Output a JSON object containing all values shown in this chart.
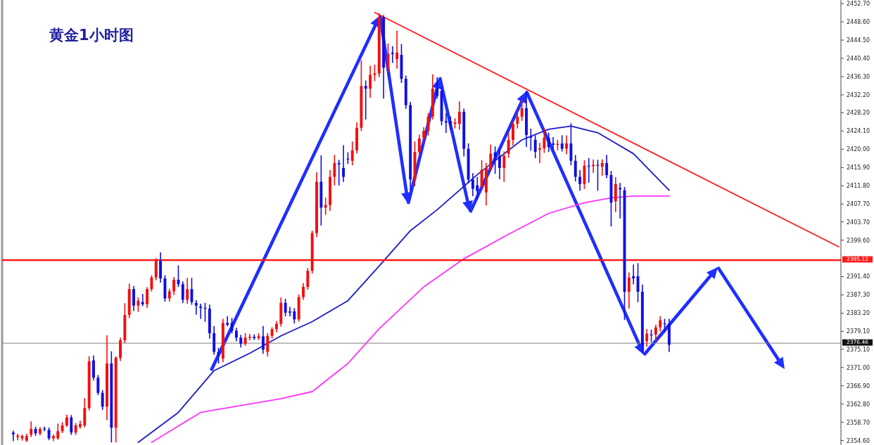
{
  "chart_data": {
    "type": "candlestick",
    "title": "黄金1小时图",
    "categories": [
      null,
      null,
      null,
      null,
      null,
      null,
      null,
      null,
      null,
      null,
      null,
      null,
      null,
      null,
      null,
      null,
      null,
      null,
      null,
      null,
      null,
      null,
      null,
      null,
      null,
      null,
      null,
      null,
      null,
      null,
      null,
      null,
      null,
      null,
      null,
      null,
      null,
      null,
      null,
      null,
      null,
      null,
      null,
      null,
      null,
      null,
      null,
      null,
      null,
      null,
      null,
      null,
      null,
      null,
      null,
      null,
      null,
      null,
      null,
      null,
      null,
      null,
      null,
      null,
      null,
      null,
      null,
      null,
      null,
      null,
      null,
      null,
      null,
      null,
      null,
      null,
      null,
      null,
      null,
      null,
      null,
      null,
      null,
      null,
      null,
      null,
      null,
      null,
      null,
      null,
      null,
      null,
      null,
      null,
      null,
      null,
      null,
      null,
      null,
      null,
      null,
      null,
      null,
      null,
      null,
      null,
      null,
      null,
      null,
      null,
      null,
      null,
      null,
      null,
      null,
      null,
      null,
      null,
      null,
      null,
      null,
      null,
      null,
      null,
      null,
      null,
      null,
      null,
      null,
      null,
      null,
      null,
      null,
      null,
      null,
      null,
      null,
      null,
      null,
      null,
      null,
      null,
      null,
      null,
      null,
      null,
      null,
      null,
      null,
      null,
      null,
      null,
      null,
      null,
      null,
      null,
      null,
      null,
      null,
      null,
      null,
      null,
      null,
      null,
      null,
      null,
      null,
      null,
      null,
      null,
      null,
      null,
      null,
      null,
      null,
      null,
      null,
      null,
      null,
      null,
      null,
      null,
      null,
      null,
      null,
      null,
      null,
      null
    ],
    "ohlc": [
      null,
      null,
      [
        2356.4,
        2356.7,
        2354.6,
        2356.0
      ],
      [
        2355.4,
        2356.0,
        2354.8,
        2355.7
      ],
      [
        2355.1,
        2355.8,
        2354.7,
        2355.6
      ],
      [
        2354.6,
        2356.0,
        2354.4,
        2355.6
      ],
      [
        2355.9,
        2358.8,
        2355.5,
        2357.2
      ],
      [
        2357.2,
        2357.6,
        2355.8,
        2356.2
      ],
      [
        2356.2,
        2357.5,
        2355.9,
        2357.2
      ],
      [
        2357.3,
        2357.6,
        2356.8,
        2357.1
      ],
      [
        2357.0,
        2357.4,
        2354.8,
        2355.1
      ],
      [
        2355.1,
        2355.8,
        2354.6,
        2355.6
      ],
      [
        2355.1,
        2358.3,
        2354.9,
        2356.7
      ],
      [
        2356.7,
        2358.6,
        2356.4,
        2358.0
      ],
      [
        2358.0,
        2360.3,
        2357.8,
        2359.8
      ],
      [
        2359.8,
        2360.2,
        2356.0,
        2356.4
      ],
      [
        2356.4,
        2358.4,
        2356.0,
        2358.0
      ],
      [
        2357.7,
        2358.9,
        2357.4,
        2358.3
      ],
      [
        2358.0,
        2364.0,
        2357.7,
        2361.9
      ],
      [
        2361.9,
        2373.4,
        2361.5,
        2372.4
      ],
      [
        2372.6,
        2373.6,
        2368.2,
        2368.7
      ],
      [
        2368.7,
        2369.2,
        2364.9,
        2365.3
      ],
      [
        2365.3,
        2365.8,
        2361.6,
        2362.2
      ],
      [
        2362.2,
        2378.1,
        2359.3,
        2371.9
      ],
      [
        2371.9,
        2374.5,
        2354.3,
        2357.5
      ],
      [
        2357.5,
        2373.4,
        2354.3,
        2373.2
      ],
      [
        2373.2,
        2377.6,
        2372.6,
        2377.1
      ],
      [
        2377.1,
        2385.3,
        2376.6,
        2382.8
      ],
      [
        2382.8,
        2389.7,
        2382.2,
        2388.6
      ],
      [
        2388.6,
        2389.2,
        2383.8,
        2384.9
      ],
      [
        2384.9,
        2386.6,
        2383.6,
        2386.0
      ],
      [
        2385.7,
        2387.4,
        2384.9,
        2385.2
      ],
      [
        2385.2,
        2388.9,
        2384.5,
        2388.6
      ],
      [
        2388.6,
        2391.6,
        2388.2,
        2391.2
      ],
      [
        2391.2,
        2395.4,
        2390.7,
        2394.9
      ],
      [
        2394.9,
        2396.7,
        2390.2,
        2391.0
      ],
      [
        2391.0,
        2391.6,
        2385.9,
        2386.5
      ],
      [
        2386.5,
        2388.6,
        2385.9,
        2388.1
      ],
      [
        2388.1,
        2391.2,
        2387.4,
        2390.7
      ],
      [
        2390.7,
        2393.8,
        2389.2,
        2389.7
      ],
      [
        2389.7,
        2390.2,
        2385.6,
        2386.2
      ],
      [
        2386.2,
        2391.0,
        2385.4,
        2388.6
      ],
      [
        2388.6,
        2391.0,
        2385.2,
        2385.7
      ],
      [
        2385.5,
        2386.0,
        2383.0,
        2384.9
      ],
      [
        2384.7,
        2385.2,
        2382.0,
        2384.4
      ],
      [
        2384.4,
        2385.4,
        2381.4,
        2384.2
      ],
      [
        2384.2,
        2385.0,
        2377.6,
        2378.7
      ],
      [
        2378.7,
        2380.2,
        2374.0,
        2374.5
      ],
      [
        2374.5,
        2375.3,
        2372.0,
        2374.0
      ],
      [
        2373.0,
        2381.8,
        2372.3,
        2381.0
      ],
      [
        2381.0,
        2382.4,
        2380.4,
        2380.6
      ],
      [
        2381.0,
        2382.0,
        2378.8,
        2379.25
      ],
      [
        2379.25,
        2379.8,
        2377.0,
        2377.7
      ],
      [
        2377.7,
        2378.2,
        2375.6,
        2376.3
      ],
      [
        2376.3,
        2378.6,
        2376.0,
        2377.7
      ],
      [
        2377.7,
        2378.4,
        2377.2,
        2377.9
      ],
      [
        2377.9,
        2378.3,
        2377.3,
        2377.6
      ],
      [
        2377.6,
        2378.6,
        2377.3,
        2378.0
      ],
      [
        2378.0,
        2380.2,
        2374.2,
        2375.0
      ],
      [
        2374.5,
        2378.6,
        2373.6,
        2378.1
      ],
      [
        2378.1,
        2379.9,
        2377.6,
        2379.6
      ],
      [
        2379.6,
        2381.3,
        2379.0,
        2380.8
      ],
      [
        2380.8,
        2386.6,
        2380.3,
        2385.5
      ],
      [
        2385.5,
        2386.3,
        2382.6,
        2383.3
      ],
      [
        2383.6,
        2384.5,
        2382.6,
        2383.3
      ],
      [
        2383.6,
        2384.2,
        2381.0,
        2381.8
      ],
      [
        2381.8,
        2387.3,
        2381.4,
        2386.8
      ],
      [
        2386.8,
        2389.8,
        2386.3,
        2389.1
      ],
      [
        2389.1,
        2393.2,
        2388.6,
        2392.7
      ],
      [
        2392.7,
        2401.6,
        2392.2,
        2401.2
      ],
      [
        2401.2,
        2414.7,
        2400.4,
        2412.7
      ],
      [
        2412.7,
        2418.5,
        2403.0,
        2406.9
      ],
      [
        2406.9,
        2409.0,
        2405.4,
        2407.5
      ],
      [
        2407.5,
        2415.2,
        2406.3,
        2413.8
      ],
      [
        2413.8,
        2418.6,
        2412.0,
        2416.9
      ],
      [
        2416.9,
        2417.5,
        2412.0,
        2416.6
      ],
      [
        2415.8,
        2420.8,
        2412.8,
        2413.8
      ],
      [
        2417.9,
        2419.2,
        2416.8,
        2417.7
      ],
      [
        2417.4,
        2421.6,
        2416.5,
        2419.75
      ],
      [
        2419.75,
        2425.9,
        2419.2,
        2424.8
      ],
      [
        2424.8,
        2439.8,
        2424.2,
        2434.2
      ],
      [
        2434.2,
        2435.3,
        2426.8,
        2433.6
      ],
      [
        2433.6,
        2438.6,
        2431.7,
        2436.7
      ],
      [
        2436.7,
        2438.9,
        2435.4,
        2437.0
      ],
      [
        2437.0,
        2450.4,
        2436.3,
        2449.6
      ],
      [
        2449.6,
        2450.0,
        2431.5,
        2438.3
      ],
      [
        2438.3,
        2443.6,
        2437.4,
        2441.4
      ],
      [
        2441.7,
        2443.0,
        2439.5,
        2441.4
      ],
      [
        2440.2,
        2446.5,
        2438.2,
        2441.7
      ],
      [
        2441.2,
        2443.5,
        2435.0,
        2435.8
      ],
      [
        2435.8,
        2436.4,
        2429.2,
        2429.9
      ],
      [
        2429.9,
        2430.5,
        2410.8,
        2413.2
      ],
      [
        2413.2,
        2421.6,
        2411.8,
        2419.4
      ],
      [
        2419.4,
        2423.2,
        2418.6,
        2422.4
      ],
      [
        2422.6,
        2424.8,
        2421.3,
        2424.1
      ],
      [
        2424.1,
        2428.0,
        2423.2,
        2427.3
      ],
      [
        2427.3,
        2436.7,
        2426.8,
        2433.6
      ],
      [
        2433.6,
        2436.0,
        2431.5,
        2432.0
      ],
      [
        2433.1,
        2433.8,
        2425.5,
        2426.3
      ],
      [
        2426.3,
        2428.0,
        2423.8,
        2426.0
      ],
      [
        2426.3,
        2427.2,
        2424.5,
        2425.7
      ],
      [
        2425.7,
        2426.8,
        2424.8,
        2426.0
      ],
      [
        2425.7,
        2430.6,
        2424.5,
        2428.4
      ],
      [
        2428.4,
        2429.0,
        2418.5,
        2420.1
      ],
      [
        2420.1,
        2421.2,
        2412.5,
        2413.2
      ],
      [
        2413.2,
        2414.5,
        2409.6,
        2411.1
      ],
      [
        2411.9,
        2413.6,
        2408.8,
        2410.6
      ],
      [
        2411.6,
        2417.4,
        2410.8,
        2415.4
      ],
      [
        2410.3,
        2416.8,
        2407.5,
        2415.8
      ],
      [
        2415.8,
        2420.9,
        2415.2,
        2419.0
      ],
      [
        2419.3,
        2420.5,
        2414.6,
        2418.2
      ],
      [
        2418.5,
        2419.8,
        2413.4,
        2415.8
      ],
      [
        2415.8,
        2419.4,
        2412.8,
        2418.5
      ],
      [
        2419.0,
        2423.6,
        2418.2,
        2422.1
      ],
      [
        2422.1,
        2426.0,
        2421.0,
        2425.7
      ],
      [
        2425.7,
        2428.7,
        2424.8,
        2427.3
      ],
      [
        2427.3,
        2431.0,
        2426.5,
        2429.2
      ],
      [
        2429.2,
        2433.0,
        2420.6,
        2423.2
      ],
      [
        2422.9,
        2424.5,
        2419.8,
        2422.6
      ],
      [
        2422.1,
        2423.0,
        2418.1,
        2419.4
      ],
      [
        2419.9,
        2421.3,
        2417.0,
        2420.2
      ],
      [
        2420.2,
        2424.6,
        2419.3,
        2422.6
      ],
      [
        2422.6,
        2423.6,
        2419.5,
        2420.5
      ],
      [
        2421.3,
        2422.6,
        2419.8,
        2421.0
      ],
      [
        2421.0,
        2422.0,
        2419.9,
        2421.2
      ],
      [
        2421.3,
        2423.0,
        2419.6,
        2420.1
      ],
      [
        2420.1,
        2423.0,
        2419.0,
        2421.3
      ],
      [
        2421.3,
        2425.7,
        2416.5,
        2417.4
      ],
      [
        2417.4,
        2418.6,
        2412.9,
        2413.8
      ],
      [
        2413.8,
        2415.2,
        2410.8,
        2412.2
      ],
      [
        2412.2,
        2417.4,
        2411.2,
        2416.3
      ],
      [
        2416.3,
        2417.9,
        2412.6,
        2416.2
      ],
      [
        2416.2,
        2417.6,
        2414.8,
        2416.5
      ],
      [
        2416.5,
        2417.5,
        2410.8,
        2416.3
      ],
      [
        2416.1,
        2417.6,
        2414.2,
        2416.9
      ],
      [
        2416.9,
        2418.6,
        2413.6,
        2414.2
      ],
      [
        2414.2,
        2415.0,
        2402.8,
        2408.0
      ],
      [
        2408.3,
        2413.6,
        2406.0,
        2412.2
      ],
      [
        2411.3,
        2412.3,
        2404.6,
        2411.0
      ],
      [
        2410.8,
        2411.4,
        2381.8,
        2388.0
      ],
      [
        2388.0,
        2392.2,
        2384.4,
        2391.2
      ],
      [
        2391.5,
        2394.0,
        2389.8,
        2391.0
      ],
      [
        2391.5,
        2394.3,
        2385.8,
        2388.0
      ],
      [
        2388.0,
        2389.5,
        2374.5,
        2376.1
      ],
      [
        2376.9,
        2379.5,
        2375.8,
        2378.6
      ],
      [
        2378.4,
        2379.4,
        2376.8,
        2378.2
      ],
      [
        2378.4,
        2380.5,
        2377.0,
        2380.0
      ],
      [
        2380.0,
        2382.4,
        2379.2,
        2381.6
      ],
      [
        2380.9,
        2381.8,
        2379.0,
        2380.8
      ],
      [
        2380.8,
        2381.8,
        2374.6,
        2376.1
      ],
      null,
      null,
      null,
      null,
      null,
      null,
      null,
      null,
      null,
      null,
      null,
      null,
      null,
      null,
      null,
      null,
      null,
      null,
      null,
      null,
      null,
      null,
      null,
      null,
      null,
      null,
      null,
      null,
      null,
      null,
      null,
      null,
      null,
      null,
      null,
      null,
      null,
      null
    ],
    "colors": [
      null,
      null,
      "#1010e0",
      "#f01010",
      "#f01010",
      "#f01010",
      "#f01010",
      "#1010e0",
      "#f01010",
      "#1010e0",
      "#1010e0",
      "#f01010",
      "#f01010",
      "#f01010",
      "#f01010",
      "#1010e0",
      "#f01010",
      "#f01010",
      "#f01010",
      "#f01010",
      "#1010e0",
      "#1010e0",
      "#1010e0",
      "#f01010",
      "#1010e0",
      "#f01010",
      "#f01010",
      "#f01010",
      "#f01010",
      "#1010e0",
      "#f01010",
      "#1010e0",
      "#f01010",
      "#f01010",
      "#f01010",
      "#1010e0",
      "#1010e0",
      "#f01010",
      "#f01010",
      "#1010e0",
      "#1010e0",
      "#f01010",
      "#1010e0",
      "#1010e0",
      "#1010e0",
      "#1010e0",
      "#1010e0",
      "#1010e0",
      "#1010e0",
      "#f01010",
      "#1010e0",
      "#1010e0",
      "#1010e0",
      "#1010e0",
      "#f01010",
      "#f01010",
      "#1010e0",
      "#f01010",
      "#1010e0",
      "#f01010",
      "#f01010",
      "#f01010",
      "#f01010",
      "#1010e0",
      "#1010e0",
      "#1010e0",
      "#f01010",
      "#f01010",
      "#f01010",
      "#f01010",
      "#f01010",
      "#1010e0",
      "#f01010",
      "#f01010",
      "#f01010",
      "#1010e0",
      "#1010e0",
      "#1010e0",
      "#f01010",
      "#f01010",
      "#f01010",
      "#1010e0",
      "#f01010",
      "#f01010",
      "#f01010",
      "#1010e0",
      "#f01010",
      "#1010e0",
      "#f01010",
      "#1010e0",
      "#1010e0",
      "#1010e0",
      "#f01010",
      "#f01010",
      "#f01010",
      "#f01010",
      "#f01010",
      "#1010e0",
      "#1010e0",
      "#1010e0",
      "#1010e0",
      "#f01010",
      "#f01010",
      "#1010e0",
      "#1010e0",
      "#1010e0",
      "#1010e0",
      "#f01010",
      "#f01010",
      "#f01010",
      "#1010e0",
      "#1010e0",
      "#f01010",
      "#f01010",
      "#f01010",
      "#f01010",
      "#f01010",
      "#1010e0",
      "#1010e0",
      "#1010e0",
      "#f01010",
      "#f01010",
      "#1010e0",
      "#1010e0",
      "#f01010",
      "#1010e0",
      "#f01010",
      "#1010e0",
      "#1010e0",
      "#1010e0",
      "#f01010",
      "#1010e0",
      "#f01010",
      "#1010e0",
      "#f01010",
      "#1010e0",
      "#1010e0",
      "#f01010",
      "#1010e0",
      "#1010e0",
      "#f01010",
      "#1010e0",
      "#1010e0",
      "#1010e0",
      "#f01010",
      "#1010e0",
      "#f01010",
      "#f01010",
      "#1010e0",
      "#1010e0",
      null,
      null,
      null,
      null,
      null,
      null,
      null,
      null,
      null,
      null,
      null,
      null,
      null,
      null,
      null,
      null,
      null,
      null,
      null,
      null,
      null,
      null,
      null,
      null,
      null,
      null,
      null,
      null,
      null,
      null,
      null,
      null,
      null,
      null,
      null,
      null,
      null,
      null
    ],
    "series": [
      {
        "type": "line",
        "color": "#1a1acc",
        "values": [
          null,
          null,
          null,
          null,
          null,
          null,
          null,
          null,
          null,
          null,
          null,
          null,
          null,
          null,
          null,
          null,
          null,
          null,
          null,
          null,
          null,
          null,
          null,
          null,
          null,
          null,
          null,
          null,
          null,
          null,
          2354.2,
          null,
          null,
          null,
          null,
          null,
          null,
          null,
          null,
          2360.9,
          null,
          null,
          null,
          null,
          null,
          null,
          null,
          2370.3,
          null,
          null,
          null,
          null,
          null,
          null,
          null,
          2374.2,
          null,
          null,
          null,
          null,
          null,
          null,
          2378.1,
          null,
          null,
          null,
          null,
          null,
          null,
          2381.3,
          null,
          null,
          null,
          null,
          null,
          null,
          null,
          2386.0,
          null,
          null,
          null,
          null,
          null,
          null,
          2393.8,
          null,
          null,
          null,
          null,
          null,
          null,
          2401.7,
          null,
          null,
          null,
          null,
          null,
          2406.4,
          null,
          null,
          null,
          null,
          null,
          null,
          null,
          null,
          2414.3,
          null,
          null,
          null,
          null,
          null,
          null,
          null,
          null,
          null,
          2422.1,
          null,
          null,
          null,
          null,
          null,
          2424.5,
          null,
          null,
          null,
          null,
          2425.2,
          null,
          null,
          null,
          null,
          null,
          2423.7,
          null,
          null,
          null,
          null,
          null,
          null,
          null,
          2419.0,
          null,
          null,
          null,
          null,
          null,
          null,
          null,
          2410.8,
          null,
          null,
          null,
          null,
          null,
          null,
          null,
          null,
          null,
          null,
          null,
          null,
          null,
          null,
          null,
          null,
          null,
          null,
          null,
          null,
          null,
          null,
          null,
          null,
          null,
          null,
          null,
          null,
          null,
          null,
          null,
          null,
          null,
          null,
          null,
          null,
          null,
          null
        ]
      },
      {
        "type": "line",
        "color": "#ff33ff",
        "values": [
          null,
          null,
          null,
          null,
          null,
          null,
          null,
          null,
          null,
          null,
          null,
          null,
          null,
          null,
          null,
          null,
          null,
          null,
          null,
          null,
          null,
          null,
          null,
          null,
          null,
          null,
          null,
          null,
          null,
          null,
          null,
          null,
          null,
          2354.2,
          null,
          null,
          null,
          null,
          null,
          null,
          null,
          null,
          null,
          null,
          2360.9,
          null,
          null,
          null,
          null,
          null,
          null,
          null,
          null,
          null,
          null,
          2362.8,
          null,
          null,
          null,
          null,
          null,
          null,
          2364.0,
          null,
          null,
          null,
          null,
          null,
          null,
          2365.6,
          null,
          null,
          null,
          null,
          null,
          null,
          null,
          2371.9,
          null,
          null,
          null,
          null,
          null,
          null,
          2379.7,
          null,
          null,
          null,
          null,
          null,
          null,
          null,
          null,
          null,
          2389.1,
          null,
          null,
          null,
          null,
          null,
          null,
          null,
          null,
          2395.4,
          null,
          null,
          null,
          null,
          null,
          null,
          null,
          null,
          null,
          2400.9,
          null,
          null,
          null,
          null,
          null,
          null,
          null,
          null,
          2405.6,
          null,
          null,
          null,
          null,
          null,
          null,
          null,
          2408.0,
          null,
          null,
          null,
          null,
          null,
          2409.1,
          null,
          null,
          null,
          null,
          2409.5,
          null,
          null,
          null,
          null,
          null,
          null,
          null,
          2409.5,
          null,
          null,
          null,
          null,
          null,
          null,
          null,
          null,
          null,
          null,
          null,
          null,
          null,
          null,
          null,
          null,
          null,
          null,
          null,
          null,
          null,
          null,
          null,
          null,
          null,
          null,
          null,
          null,
          null,
          null,
          null,
          null,
          null,
          null,
          null,
          null,
          null,
          null
        ]
      },
      {
        "type": "line",
        "color": "#ff1a1a",
        "values": [
          null,
          null,
          null,
          null,
          null,
          null,
          null,
          null,
          null,
          null,
          null,
          null,
          null,
          null,
          null,
          null,
          null,
          null,
          null,
          null,
          null,
          null,
          null,
          null,
          null,
          null,
          null,
          null,
          null,
          null,
          null,
          null,
          null,
          null,
          null,
          null,
          null,
          null,
          null,
          null,
          null,
          null,
          null,
          null,
          null,
          null,
          null,
          null,
          null,
          null,
          null,
          null,
          null,
          null,
          null,
          null,
          null,
          null,
          null,
          null,
          null,
          null,
          null,
          null,
          null,
          null,
          null,
          null,
          null,
          null,
          null,
          null,
          null,
          null,
          null,
          null,
          null,
          null,
          null,
          null,
          null,
          null,
          null,
          2450.7,
          null,
          null,
          null,
          null,
          null,
          null,
          null,
          null,
          null,
          null,
          null,
          null,
          null,
          null,
          null,
          null,
          null,
          null,
          null,
          null,
          null,
          null,
          null,
          null,
          null,
          null,
          null,
          null,
          null,
          null,
          null,
          null,
          null,
          null,
          null,
          null,
          null,
          null,
          null,
          null,
          null,
          null,
          null,
          null,
          null,
          null,
          null,
          null,
          null,
          null,
          null,
          null,
          null,
          null,
          null,
          null,
          null,
          null,
          null,
          null,
          null,
          null,
          null,
          null,
          null,
          null,
          null,
          null,
          null,
          null,
          null,
          null,
          null,
          null,
          null,
          null,
          null,
          null,
          null,
          null,
          null,
          null,
          null,
          null,
          null,
          null,
          null,
          null,
          null,
          null,
          null,
          null,
          null,
          null,
          null,
          null,
          null,
          null,
          null,
          null,
          null,
          null,
          null,
          2398.1
        ]
      }
    ],
    "ref_lines": [
      {
        "axis": "y",
        "value": 2395.12,
        "label": "2395.12",
        "color": "#ff1a1a"
      },
      {
        "axis": "y",
        "value": 2376.46,
        "label": "2376.46",
        "color": "#808080"
      }
    ],
    "ylim": [
      2353.6,
      2453.5
    ],
    "yticks": [
      {
        "value": 2452.7,
        "label": "2452.70"
      },
      {
        "value": 2448.6,
        "label": "2448.60"
      },
      {
        "value": 2444.5,
        "label": "2444.50"
      },
      {
        "value": 2440.4,
        "label": "2440.40"
      },
      {
        "value": 2436.3,
        "label": "2436.30"
      },
      {
        "value": 2432.2,
        "label": "2432.20"
      },
      {
        "value": 2428.2,
        "label": "2428.20"
      },
      {
        "value": 2424.1,
        "label": "2424.10"
      },
      {
        "value": 2420.0,
        "label": "2420.00"
      },
      {
        "value": 2415.9,
        "label": "2415.90"
      },
      {
        "value": 2411.8,
        "label": "2411.80"
      },
      {
        "value": 2407.7,
        "label": "2407.70"
      },
      {
        "value": 2403.7,
        "label": "2403.70"
      },
      {
        "value": 2399.6,
        "label": "2399.60"
      },
      {
        "value": 2391.4,
        "label": "2391.40"
      },
      {
        "value": 2387.3,
        "label": "2387.30"
      },
      {
        "value": 2383.2,
        "label": "2383.20"
      },
      {
        "value": 2379.1,
        "label": "2379.10"
      },
      {
        "value": 2375.1,
        "label": "2375.10"
      },
      {
        "value": 2371.0,
        "label": "2371.00"
      },
      {
        "value": 2366.9,
        "label": "2366.90"
      },
      {
        "value": 2362.8,
        "label": "2362.80"
      },
      {
        "value": 2358.7,
        "label": "2358.70"
      },
      {
        "value": 2354.6,
        "label": "2354.60"
      }
    ]
  }
}
